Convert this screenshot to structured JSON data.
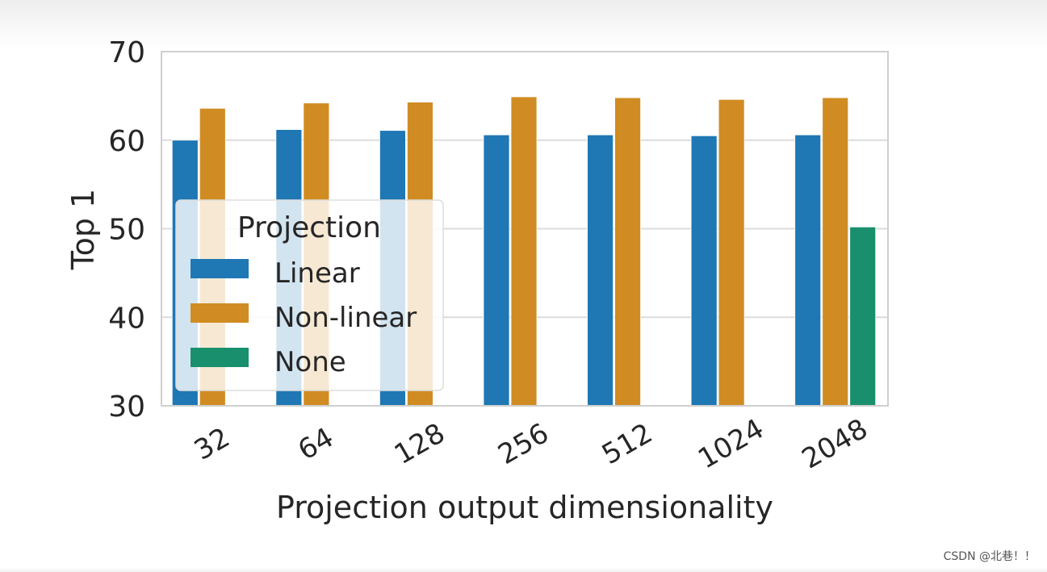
{
  "chart_data": {
    "type": "bar",
    "xlabel": "Projection output dimensionality",
    "ylabel": "Top 1",
    "categories": [
      "32",
      "64",
      "128",
      "256",
      "512",
      "1024",
      "2048"
    ],
    "ylim": [
      30,
      70
    ],
    "yticks": [
      "30",
      "40",
      "50",
      "60",
      "70"
    ],
    "grid": true,
    "legend": {
      "title": "Projection",
      "placement": "lower-left"
    },
    "series": [
      {
        "name": "Linear",
        "color": "#1f77b4",
        "values": [
          60.0,
          61.2,
          61.1,
          60.6,
          60.6,
          60.5,
          60.6
        ]
      },
      {
        "name": "Non-linear",
        "color": "#d08c22",
        "values": [
          63.6,
          64.2,
          64.3,
          64.9,
          64.8,
          64.6,
          64.8
        ]
      },
      {
        "name": "None",
        "color": "#1a8f6e",
        "values": [
          null,
          null,
          null,
          null,
          null,
          null,
          50.2
        ]
      }
    ]
  },
  "watermark": "CSDN @北巷！！"
}
